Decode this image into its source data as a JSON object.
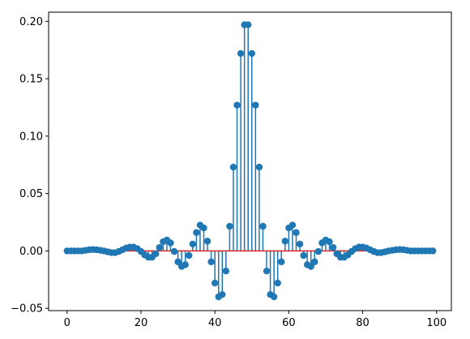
{
  "chart_data": {
    "type": "stem",
    "title": "",
    "xlabel": "",
    "ylabel": "",
    "xlim": [
      -5,
      104
    ],
    "ylim": [
      -0.052,
      0.208
    ],
    "grid": false,
    "x_ticks": [
      0,
      20,
      40,
      60,
      80,
      100
    ],
    "x_tick_labels": [
      "0",
      "20",
      "40",
      "60",
      "80",
      "100"
    ],
    "y_ticks": [
      -0.05,
      0.0,
      0.05,
      0.1,
      0.15,
      0.2
    ],
    "y_tick_labels": [
      "−0.05",
      "0.00",
      "0.05",
      "0.10",
      "0.15",
      "0.20"
    ],
    "stem_color": "#1f77b4",
    "baseline_color": "#d62728",
    "series": [
      {
        "x": [
          0,
          1,
          2,
          3,
          4,
          5,
          6,
          7,
          8,
          9,
          10,
          11,
          12,
          13,
          14,
          15,
          16,
          17,
          18,
          19,
          20,
          21,
          22,
          23,
          24,
          25,
          26,
          27,
          28,
          29,
          30,
          31,
          32,
          33,
          34,
          35,
          36,
          37,
          38,
          39,
          40,
          41,
          42,
          43,
          44,
          45,
          46,
          47,
          48,
          49,
          50,
          51,
          52,
          53,
          54,
          55,
          56,
          57,
          58,
          59,
          60,
          61,
          62,
          63,
          64,
          65,
          66,
          67,
          68,
          69,
          70,
          71,
          72,
          73,
          74,
          75,
          76,
          77,
          78,
          79,
          80,
          81,
          82,
          83,
          84,
          85,
          86,
          87,
          88,
          89,
          90,
          91,
          92,
          93,
          94,
          95,
          96,
          97,
          98,
          99
        ],
        "y": [
          0.0,
          0.0,
          0.0,
          0.0,
          0.0,
          0.0005,
          0.001,
          0.0012,
          0.001,
          0.0005,
          0.0,
          -0.0008,
          -0.0015,
          -0.0015,
          -0.0005,
          0.001,
          0.0025,
          0.0033,
          0.0033,
          0.002,
          -0.0005,
          -0.0035,
          -0.0055,
          -0.0055,
          -0.0025,
          0.003,
          0.008,
          0.0095,
          0.007,
          -0.0005,
          -0.0095,
          -0.0135,
          -0.012,
          -0.004,
          0.006,
          0.016,
          0.0225,
          0.02,
          0.0085,
          -0.0095,
          -0.028,
          -0.04,
          -0.038,
          -0.0175,
          0.0215,
          0.073,
          0.127,
          0.172,
          0.197,
          0.197,
          0.172,
          0.127,
          0.073,
          0.0215,
          -0.0175,
          -0.038,
          -0.04,
          -0.028,
          -0.0095,
          0.0085,
          0.02,
          0.0225,
          0.016,
          0.006,
          -0.004,
          -0.012,
          -0.0135,
          -0.0095,
          -0.0005,
          0.007,
          0.0095,
          0.008,
          0.003,
          -0.0025,
          -0.0055,
          -0.0055,
          -0.0035,
          -0.0005,
          0.002,
          0.0033,
          0.0033,
          0.0025,
          0.001,
          -0.0005,
          -0.0015,
          -0.0015,
          -0.0008,
          0.0,
          0.0005,
          0.001,
          0.0012,
          0.001,
          0.0005,
          0.0,
          0.0,
          0.0,
          0.0,
          0.0,
          0.0,
          0.0
        ]
      }
    ]
  }
}
